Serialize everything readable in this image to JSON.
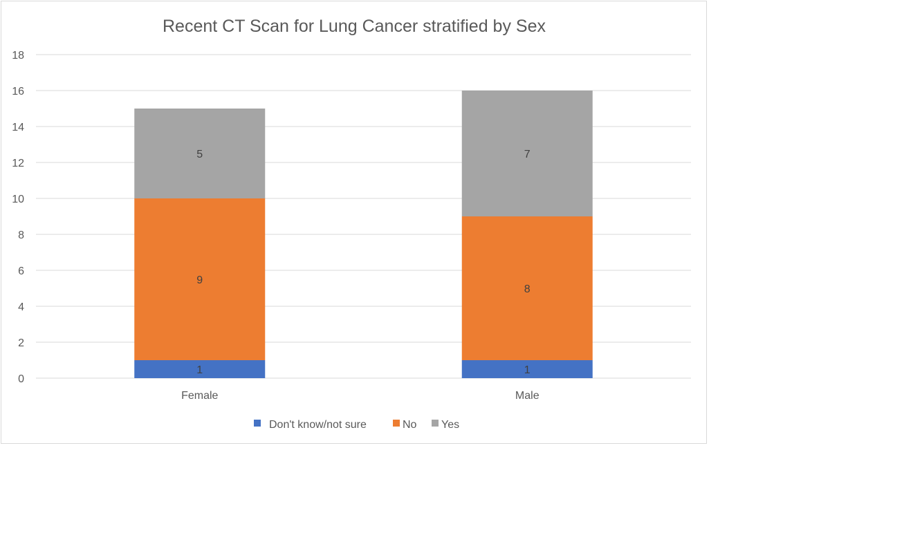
{
  "chart_data": {
    "type": "bar",
    "stacked": true,
    "title": "Recent CT Scan for Lung Cancer stratified by Sex",
    "xlabel": "",
    "ylabel": "",
    "categories": [
      "Female",
      "Male"
    ],
    "series": [
      {
        "name": "Don't know/not sure",
        "values": [
          1,
          1
        ],
        "color": "#4472c4"
      },
      {
        "name": "No",
        "values": [
          9,
          8
        ],
        "color": "#ed7d31"
      },
      {
        "name": "Yes",
        "values": [
          5,
          7
        ],
        "color": "#a5a5a5"
      }
    ],
    "ylim": [
      0,
      18
    ],
    "yticks": [
      0,
      2,
      4,
      6,
      8,
      10,
      12,
      14,
      16,
      18
    ],
    "grid": true,
    "legend": "bottom",
    "data_labels": true
  }
}
